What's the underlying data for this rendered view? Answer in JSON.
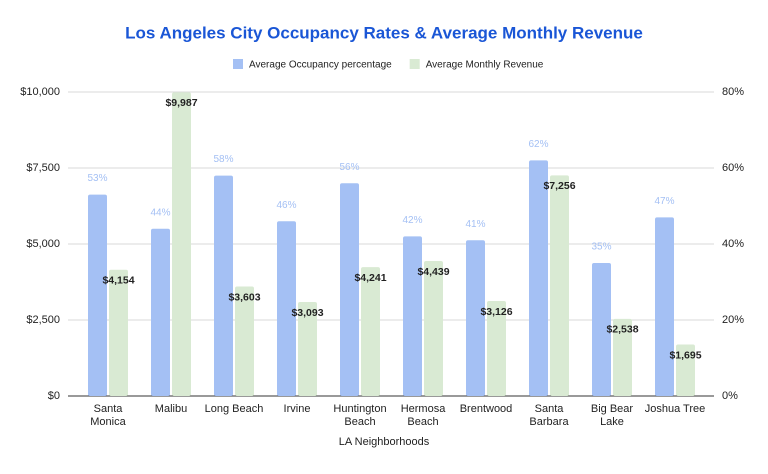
{
  "chart_data": {
    "type": "bar",
    "title": "Los Angeles City Occupancy Rates & Average Monthly Revenue",
    "x_label": "LA Neighborhoods",
    "categories": [
      "Santa Monica",
      "Malibu",
      "Long Beach",
      "Irvine",
      "Huntington Beach",
      "Hermosa Beach",
      "Brentwood",
      "Santa Barbara",
      "Big Bear Lake",
      "Joshua Tree"
    ],
    "series": [
      {
        "name": "Average Occupancy percentage",
        "color": "#a4c0f4",
        "axis": "y2",
        "values": [
          53,
          44,
          58,
          46,
          56,
          42,
          41,
          62,
          35,
          47
        ],
        "value_labels": [
          "53%",
          "44%",
          "58%",
          "46%",
          "56%",
          "42%",
          "41%",
          "62%",
          "35%",
          "47%"
        ]
      },
      {
        "name": "Average Monthly Revenue",
        "color": "#d9ead3",
        "values": [
          4154,
          9987,
          3603,
          3093,
          4241,
          4439,
          3126,
          7256,
          2538,
          1695
        ],
        "value_labels": [
          "$4,154",
          "$9,987",
          "$3,603",
          "$3,093",
          "$4,241",
          "$4,439",
          "$3,126",
          "$7,256",
          "$2,538",
          "$1,695"
        ]
      }
    ],
    "ylim": [
      0,
      10000
    ],
    "yticks": [
      {
        "value": 0,
        "label": "$0"
      },
      {
        "value": 2500,
        "label": "$2,500"
      },
      {
        "value": 5000,
        "label": "$5,000"
      },
      {
        "value": 7500,
        "label": "$7,500"
      },
      {
        "value": 10000,
        "label": "$10,000"
      }
    ],
    "y2lim": [
      0,
      80
    ],
    "y2ticks": [
      {
        "value": 0,
        "label": "0%"
      },
      {
        "value": 20,
        "label": "20%"
      },
      {
        "value": 40,
        "label": "40%"
      },
      {
        "value": 60,
        "label": "60%"
      },
      {
        "value": 80,
        "label": "80%"
      }
    ],
    "grid": true,
    "legend": "top"
  }
}
